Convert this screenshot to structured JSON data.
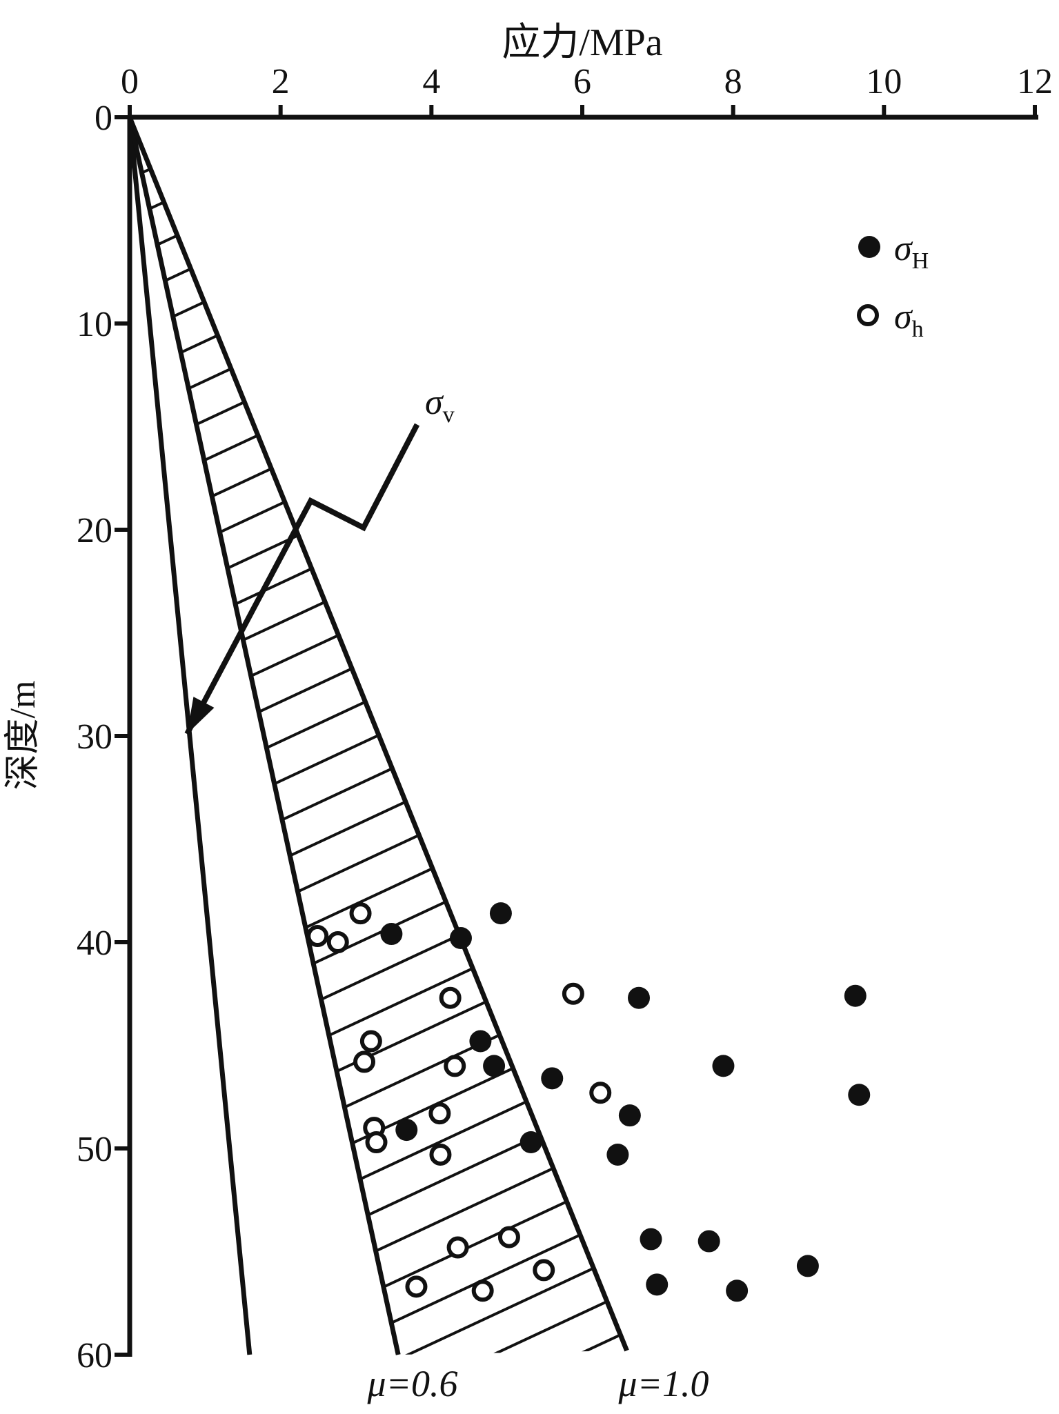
{
  "title": "应力/MPa",
  "ylabel": "深度/m",
  "legend": [
    {
      "marker": "filled",
      "base": "σ",
      "sub": "H"
    },
    {
      "marker": "open",
      "base": "σ",
      "sub": "h"
    }
  ],
  "annotations": {
    "sigma_v": {
      "base": "σ",
      "sub": "v"
    },
    "mu06": "μ=0.6",
    "mu10": "μ=1.0"
  },
  "colors": {
    "ink": "#111111",
    "background": "#ffffff"
  },
  "chart_data": {
    "type": "scatter",
    "title": "应力/MPa",
    "xlabel": "应力/MPa",
    "ylabel": "深度/m",
    "xlim": [
      0,
      12
    ],
    "ylim": [
      0,
      60
    ],
    "y_inverted": true,
    "grid": false,
    "x_ticks": [
      0,
      2,
      4,
      6,
      8,
      10,
      12
    ],
    "y_ticks": [
      0,
      10,
      20,
      30,
      40,
      50,
      60
    ],
    "legend_position": "upper right",
    "series": [
      {
        "name": "σH",
        "marker": "filled-circle",
        "points": [
          [
            3.47,
            39.6
          ],
          [
            4.39,
            39.8
          ],
          [
            4.92,
            38.6
          ],
          [
            6.75,
            42.7
          ],
          [
            9.62,
            42.6
          ],
          [
            4.65,
            44.8
          ],
          [
            4.83,
            46.0
          ],
          [
            7.87,
            46.0
          ],
          [
            5.6,
            46.6
          ],
          [
            6.63,
            48.4
          ],
          [
            3.67,
            49.1
          ],
          [
            5.32,
            49.7
          ],
          [
            6.47,
            50.3
          ],
          [
            9.67,
            47.4
          ],
          [
            6.91,
            54.4
          ],
          [
            7.68,
            54.5
          ],
          [
            8.99,
            55.7
          ],
          [
            6.99,
            56.6
          ],
          [
            8.05,
            56.9
          ]
        ]
      },
      {
        "name": "σh",
        "marker": "open-circle",
        "points": [
          [
            2.49,
            39.7
          ],
          [
            2.76,
            40.0
          ],
          [
            3.06,
            38.6
          ],
          [
            4.25,
            42.7
          ],
          [
            5.88,
            42.5
          ],
          [
            3.2,
            44.8
          ],
          [
            3.11,
            45.8
          ],
          [
            4.31,
            46.0
          ],
          [
            4.11,
            48.3
          ],
          [
            3.24,
            49.0
          ],
          [
            3.27,
            49.7
          ],
          [
            4.12,
            50.3
          ],
          [
            6.24,
            47.3
          ],
          [
            5.03,
            54.3
          ],
          [
            4.35,
            54.8
          ],
          [
            5.49,
            55.9
          ],
          [
            3.8,
            56.7
          ],
          [
            4.68,
            56.9
          ]
        ]
      }
    ],
    "lines": [
      {
        "name": "sigma-v-line",
        "from": [
          0,
          0
        ],
        "to": [
          1.59,
          60.0
        ]
      },
      {
        "name": "mu-0.6-line",
        "from": [
          0,
          0
        ],
        "to": [
          3.56,
          60.0
        ]
      },
      {
        "name": "mu-1.0-line",
        "from": [
          0,
          0
        ],
        "to": [
          6.59,
          59.8
        ]
      }
    ],
    "hatched_band_between": [
      "mu-0.6-line",
      "mu-1.0-line"
    ],
    "sigma_v_callout_path": [
      [
        3.81,
        14.9
      ],
      [
        3.1,
        19.9
      ],
      [
        2.4,
        18.6
      ],
      [
        0.76,
        29.9
      ]
    ],
    "label_positions": {
      "sigma_v_label_xy": [
        4.1,
        13.6
      ],
      "mu06_below_axis_at_x": 3.75,
      "mu10_below_axis_at_x": 7.08
    }
  }
}
